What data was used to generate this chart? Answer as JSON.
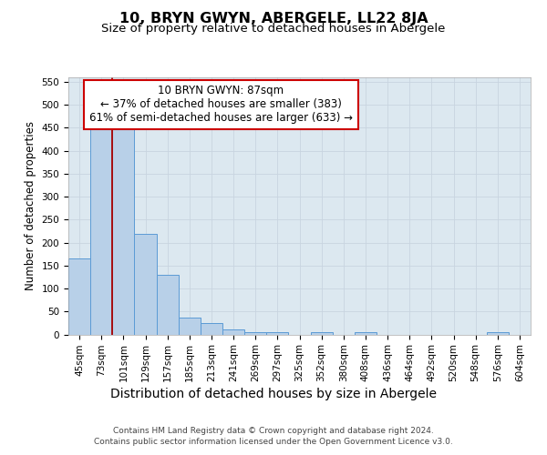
{
  "title": "10, BRYN GWYN, ABERGELE, LL22 8JA",
  "subtitle": "Size of property relative to detached houses in Abergele",
  "xlabel": "Distribution of detached houses by size in Abergele",
  "ylabel": "Number of detached properties",
  "footnote1": "Contains HM Land Registry data © Crown copyright and database right 2024.",
  "footnote2": "Contains public sector information licensed under the Open Government Licence v3.0.",
  "categories": [
    "45sqm",
    "73sqm",
    "101sqm",
    "129sqm",
    "157sqm",
    "185sqm",
    "213sqm",
    "241sqm",
    "269sqm",
    "297sqm",
    "325sqm",
    "352sqm",
    "380sqm",
    "408sqm",
    "436sqm",
    "464sqm",
    "492sqm",
    "520sqm",
    "548sqm",
    "576sqm",
    "604sqm"
  ],
  "values": [
    165,
    447,
    447,
    220,
    130,
    36,
    25,
    10,
    5,
    5,
    0,
    5,
    0,
    5,
    0,
    0,
    0,
    0,
    0,
    5,
    0
  ],
  "bar_color": "#b8d0e8",
  "bar_edge_color": "#5b9bd5",
  "bar_linewidth": 0.7,
  "vline_x": 1.5,
  "vline_color": "#aa0000",
  "vline_linewidth": 1.3,
  "annotation_text": "10 BRYN GWYN: 87sqm\n← 37% of detached houses are smaller (383)\n61% of semi-detached houses are larger (633) →",
  "annotation_box_color": "#ffffff",
  "annotation_box_edge": "#cc0000",
  "ylim": [
    0,
    560
  ],
  "yticks": [
    0,
    50,
    100,
    150,
    200,
    250,
    300,
    350,
    400,
    450,
    500,
    550
  ],
  "grid_color": "#c8d4e0",
  "bg_color": "#dce8f0",
  "title_fontsize": 11.5,
  "subtitle_fontsize": 9.5,
  "xlabel_fontsize": 10,
  "ylabel_fontsize": 8.5,
  "tick_fontsize": 7.5,
  "annot_fontsize": 8.5,
  "footnote_fontsize": 6.5
}
